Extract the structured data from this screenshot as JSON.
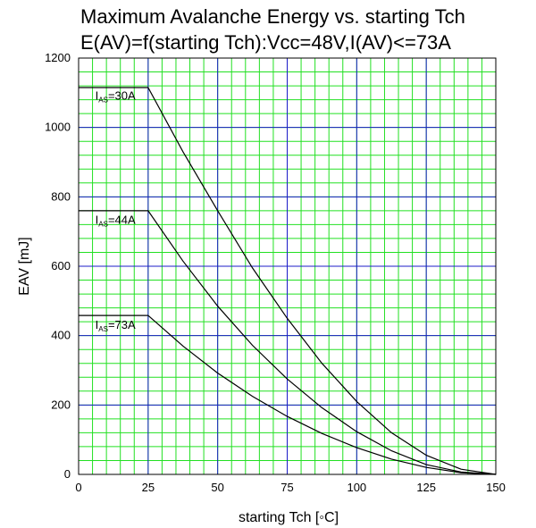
{
  "chart_data": {
    "type": "line",
    "title": "Maximum Avalanche Energy vs. starting Tch",
    "subtitle": "E(AV)=f(starting Tch):Vcc=48V,I(AV)<=73A",
    "xlabel": "starting Tch [◦C]",
    "ylabel": "EAV [mJ]",
    "xlim": [
      0,
      150
    ],
    "ylim": [
      0,
      1200
    ],
    "x_ticks": [
      0,
      25,
      50,
      75,
      100,
      125,
      150
    ],
    "y_ticks": [
      0,
      200,
      400,
      600,
      800,
      1000,
      1200
    ],
    "grid": true,
    "legend": "none",
    "colors": {
      "major_grid": "#1c1cc8",
      "minor_grid": "#22e022",
      "series": "#000000"
    },
    "series": [
      {
        "label_main": "I",
        "label_sub": "AS",
        "label_rest": "=30A",
        "label_at": {
          "x": 6,
          "y": 1080
        },
        "x": [
          0,
          25,
          37.5,
          50,
          62.5,
          75,
          87.5,
          100,
          112.5,
          125,
          137.5,
          150
        ],
        "values": [
          1115,
          1115,
          930,
          760,
          595,
          450,
          320,
          210,
          120,
          55,
          15,
          0
        ]
      },
      {
        "label_main": "I",
        "label_sub": "AS",
        "label_rest": "=44A",
        "label_at": {
          "x": 6,
          "y": 722
        },
        "x": [
          0,
          25,
          37.5,
          50,
          62.5,
          75,
          87.5,
          100,
          112.5,
          125,
          137.5,
          150
        ],
        "values": [
          760,
          760,
          615,
          485,
          372,
          275,
          192,
          123,
          68,
          28,
          7,
          0
        ]
      },
      {
        "label_main": "I",
        "label_sub": "AS",
        "label_rest": "=73A",
        "label_at": {
          "x": 6,
          "y": 420
        },
        "x": [
          0,
          25,
          37.5,
          50,
          62.5,
          75,
          87.5,
          100,
          112.5,
          125,
          137.5,
          150
        ],
        "values": [
          458,
          458,
          370,
          292,
          225,
          167,
          118,
          77,
          44,
          20,
          5,
          0
        ]
      }
    ]
  }
}
